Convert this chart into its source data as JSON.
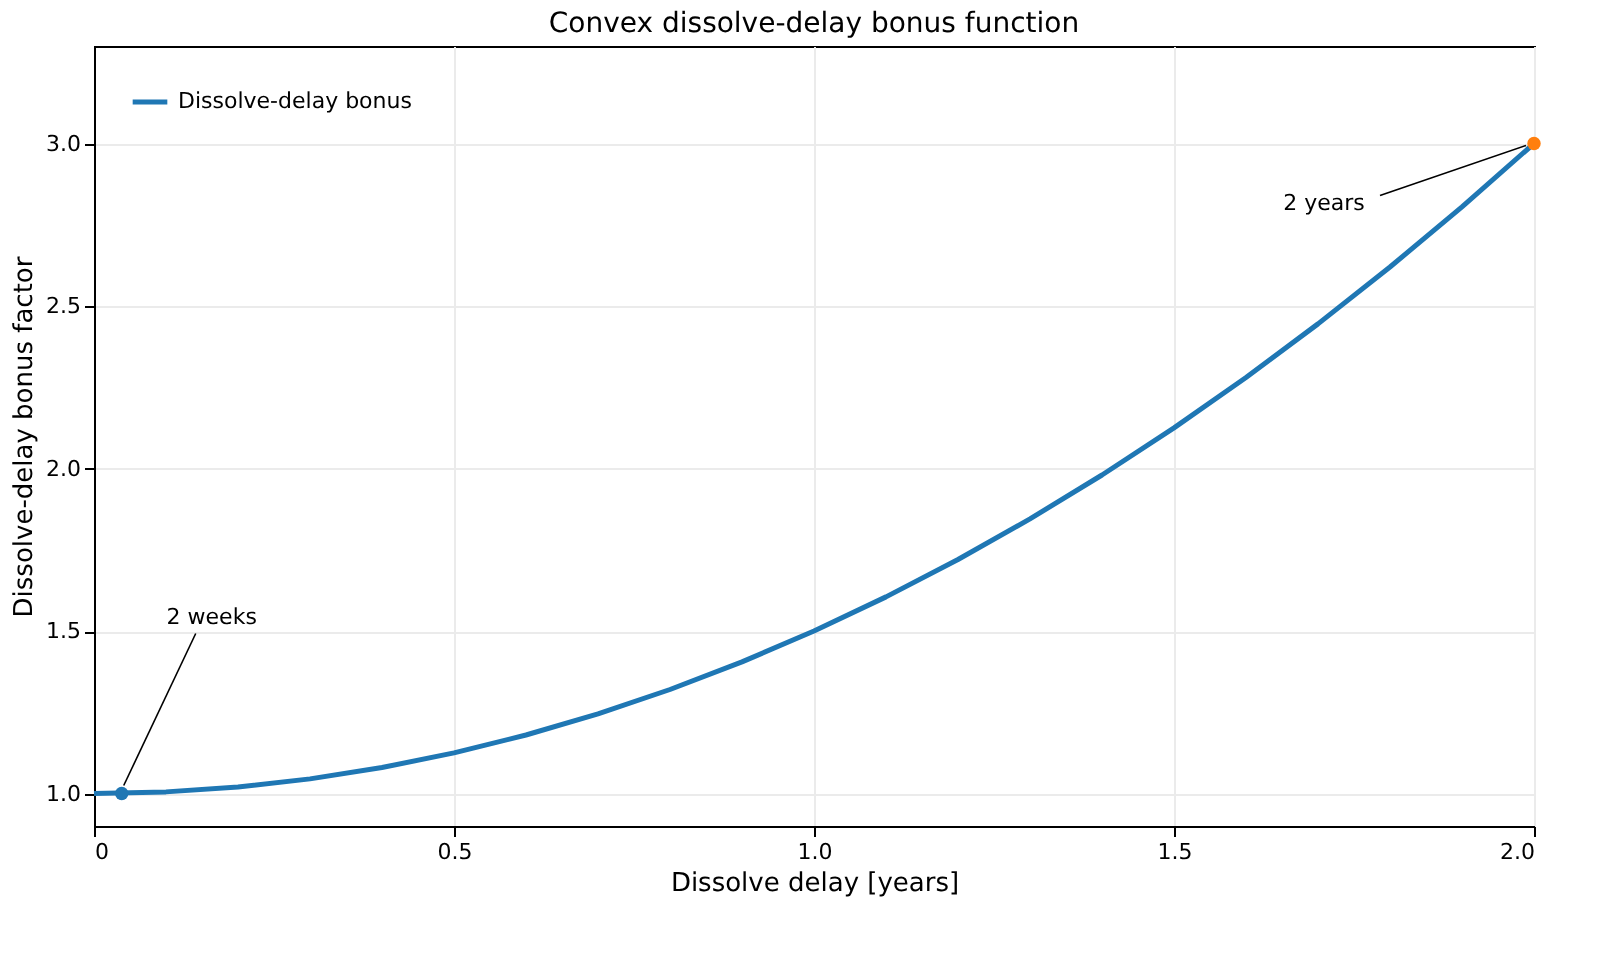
{
  "chart_data": {
    "type": "line",
    "title": "Convex dissolve-delay bonus function",
    "xlabel": "Dissolve delay [years]",
    "ylabel": "Dissolve-delay bonus factor",
    "xlim": [
      0,
      2
    ],
    "ylim": [
      0.9,
      3.3
    ],
    "xticks": [
      0,
      0.5,
      {
        "value": 1,
        "label": "1.0"
      },
      1.5,
      {
        "value": 2,
        "label": "2.0"
      }
    ],
    "yticks": [
      {
        "value": 1,
        "label": "1.0"
      },
      1.5,
      {
        "value": 2,
        "label": "2.0"
      },
      2.5,
      {
        "value": 3,
        "label": "3.0"
      }
    ],
    "grid": true,
    "legend": "top left",
    "marker": "none",
    "line_style": "solid",
    "series": [
      {
        "name": "Dissolve-delay bonus",
        "color": "#1f77b4",
        "x": [
          0,
          0.1,
          0.2,
          0.3,
          0.4,
          0.5,
          0.6,
          0.7,
          0.8,
          0.9,
          1.0,
          1.1,
          1.2,
          1.3,
          1.4,
          1.5,
          1.6,
          1.7,
          1.8,
          1.9,
          2.0
        ],
        "values": [
          1.0,
          1.005,
          1.02,
          1.045,
          1.08,
          1.125,
          1.18,
          1.245,
          1.32,
          1.405,
          1.5,
          1.605,
          1.72,
          1.845,
          1.98,
          2.125,
          2.28,
          2.445,
          2.62,
          2.805,
          3.0
        ]
      },
      {
        "type": "scatter",
        "marker": "circle",
        "color": "#1f77b4",
        "x": [
          0.0385
        ],
        "values": [
          1.0
        ]
      },
      {
        "type": "scatter",
        "marker": "circle",
        "color": "#ff7f0e",
        "x": [
          2.0
        ],
        "values": [
          3.0
        ]
      }
    ],
    "annotations": [
      {
        "text": "2 weeks",
        "x": 0.0385,
        "y": 1.0
      },
      {
        "text": "2 years",
        "x": 2.0,
        "y": 3.0
      }
    ]
  }
}
